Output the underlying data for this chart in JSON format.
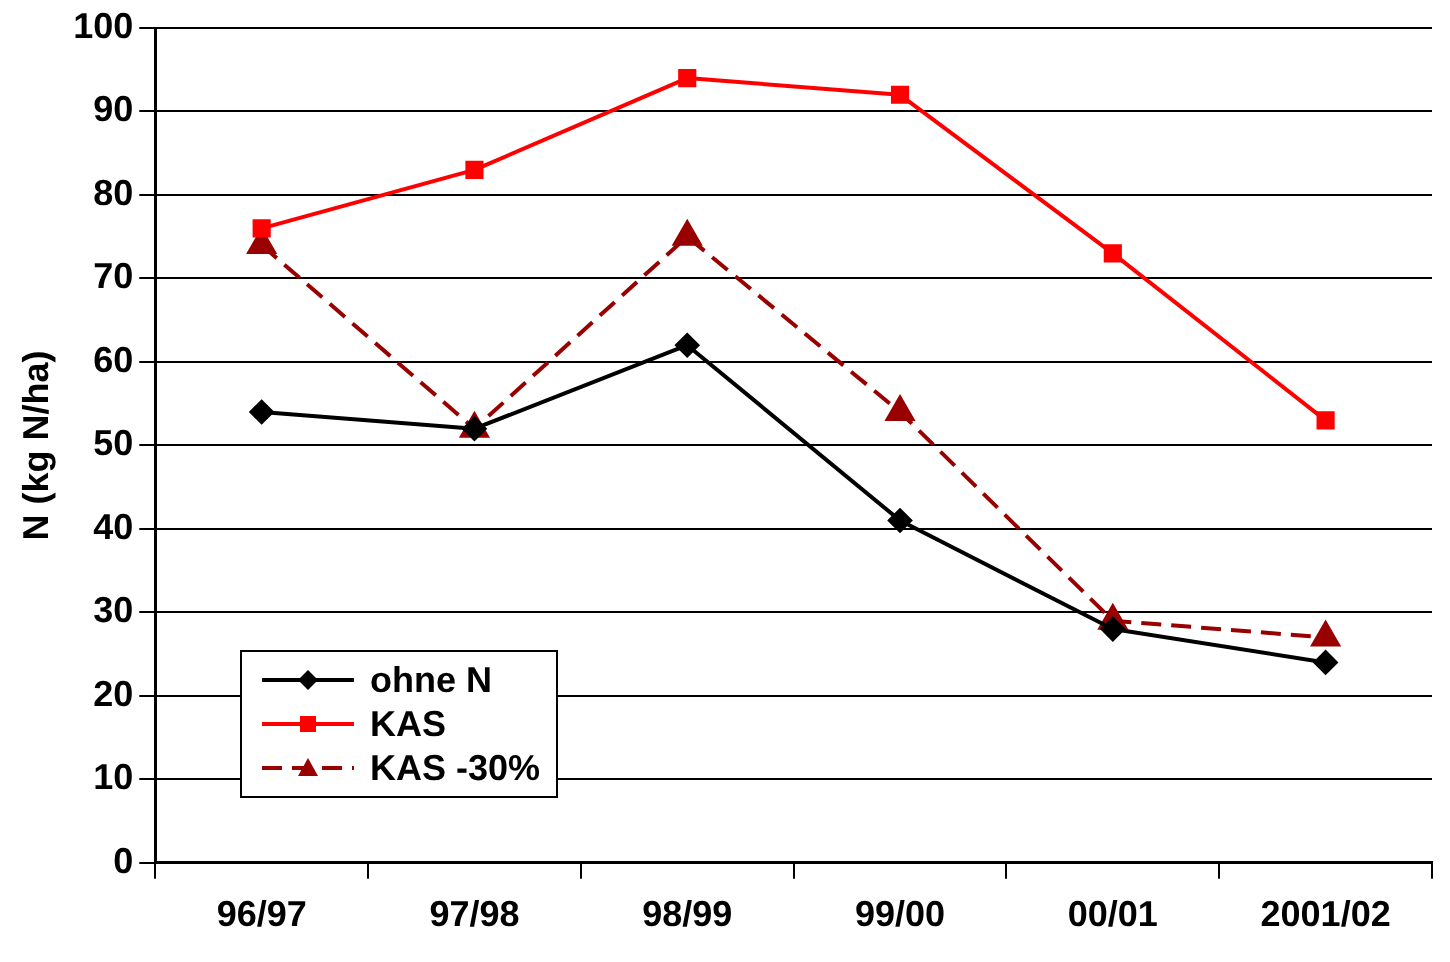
{
  "chart_data": {
    "type": "line",
    "ylabel": "N (kg N/ha)",
    "categories": [
      "96/97",
      "97/98",
      "98/99",
      "99/00",
      "00/01",
      "2001/02"
    ],
    "series": [
      {
        "name": "ohne N",
        "color": "#000000",
        "values": [
          54,
          52,
          62,
          41,
          28,
          24
        ],
        "marker": "diamond",
        "line_style": "solid"
      },
      {
        "name": "KAS",
        "color": "#ff0000",
        "values": [
          76,
          83,
          94,
          92,
          73,
          53
        ],
        "marker": "square",
        "line_style": "solid"
      },
      {
        "name": "KAS -30%",
        "color": "#990000",
        "values": [
          74,
          52,
          75,
          54,
          29,
          27
        ],
        "marker": "triangle",
        "line_style": "dashed"
      }
    ],
    "ylim": [
      0,
      100
    ],
    "yticks": [
      0,
      10,
      20,
      30,
      40,
      50,
      60,
      70,
      80,
      90,
      100
    ],
    "grid": "y",
    "legend": "bottom left"
  }
}
